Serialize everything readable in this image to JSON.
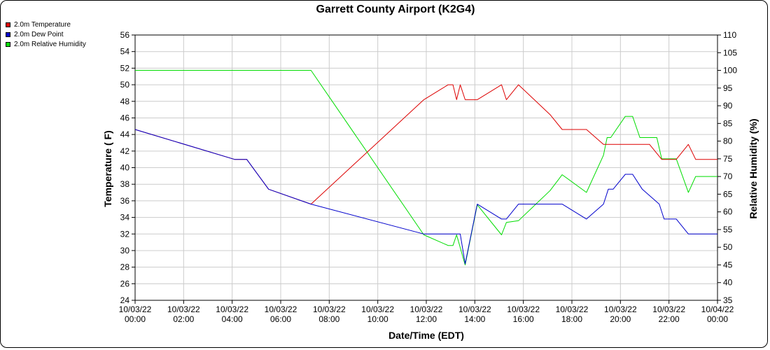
{
  "chart_data": {
    "type": "line",
    "title": "Garrett County Airport (K2G4)",
    "xlabel": "Date/Time (EDT)",
    "ylabel_left": "Temperature ( F)",
    "ylabel_right": "Relative Humidity (%)",
    "x_range_hours": [
      0,
      24
    ],
    "x_ticks": [
      {
        "h": 0,
        "date": "10/03/22",
        "time": "00:00"
      },
      {
        "h": 2,
        "date": "10/03/22",
        "time": "02:00"
      },
      {
        "h": 4,
        "date": "10/03/22",
        "time": "04:00"
      },
      {
        "h": 6,
        "date": "10/03/22",
        "time": "06:00"
      },
      {
        "h": 8,
        "date": "10/03/22",
        "time": "08:00"
      },
      {
        "h": 10,
        "date": "10/03/22",
        "time": "10:00"
      },
      {
        "h": 12,
        "date": "10/03/22",
        "time": "12:00"
      },
      {
        "h": 14,
        "date": "10/03/22",
        "time": "14:00"
      },
      {
        "h": 16,
        "date": "10/03/22",
        "time": "16:00"
      },
      {
        "h": 18,
        "date": "10/03/22",
        "time": "18:00"
      },
      {
        "h": 20,
        "date": "10/03/22",
        "time": "20:00"
      },
      {
        "h": 22,
        "date": "10/03/22",
        "time": "22:00"
      },
      {
        "h": 24,
        "date": "10/04/22",
        "time": "00:00"
      }
    ],
    "ylim_left": [
      24,
      56
    ],
    "yticks_left": [
      24,
      26,
      28,
      30,
      32,
      34,
      36,
      38,
      40,
      42,
      44,
      46,
      48,
      50,
      52,
      54,
      56
    ],
    "ylim_right": [
      35,
      110
    ],
    "yticks_right": [
      35,
      40,
      45,
      50,
      55,
      60,
      65,
      70,
      75,
      80,
      85,
      90,
      95,
      100,
      105,
      110
    ],
    "grid": true,
    "legend_position": "top-left",
    "series": [
      {
        "name": "2.0m Temperature",
        "color": "#dd0000",
        "axis": "left",
        "points": [
          [
            0,
            44.6
          ],
          [
            4.1,
            41.0
          ],
          [
            4.6,
            41.0
          ],
          [
            5.5,
            37.4
          ],
          [
            7.25,
            35.6
          ],
          [
            11.9,
            48.2
          ],
          [
            12.9,
            50.0
          ],
          [
            13.1,
            50.0
          ],
          [
            13.25,
            48.2
          ],
          [
            13.4,
            50.0
          ],
          [
            13.6,
            48.2
          ],
          [
            14.1,
            48.2
          ],
          [
            15.1,
            50.0
          ],
          [
            15.3,
            48.2
          ],
          [
            15.8,
            50.0
          ],
          [
            17.1,
            46.4
          ],
          [
            17.6,
            44.6
          ],
          [
            18.6,
            44.6
          ],
          [
            19.3,
            42.8
          ],
          [
            20.2,
            42.8
          ],
          [
            21.2,
            42.8
          ],
          [
            21.7,
            41.0
          ],
          [
            22.3,
            41.0
          ],
          [
            22.8,
            42.8
          ],
          [
            23.1,
            41.0
          ],
          [
            24.0,
            41.0
          ]
        ]
      },
      {
        "name": "2.0m Dew Point",
        "color": "#0000cc",
        "axis": "left",
        "points": [
          [
            0,
            44.6
          ],
          [
            4.1,
            41.0
          ],
          [
            4.6,
            41.0
          ],
          [
            5.5,
            37.4
          ],
          [
            7.25,
            35.6
          ],
          [
            11.9,
            32.0
          ],
          [
            13.1,
            32.0
          ],
          [
            13.4,
            32.0
          ],
          [
            13.6,
            28.4
          ],
          [
            14.1,
            35.6
          ],
          [
            15.1,
            33.8
          ],
          [
            15.3,
            33.8
          ],
          [
            15.8,
            35.6
          ],
          [
            17.1,
            35.6
          ],
          [
            17.6,
            35.6
          ],
          [
            18.6,
            33.8
          ],
          [
            19.3,
            35.6
          ],
          [
            19.5,
            37.4
          ],
          [
            19.7,
            37.4
          ],
          [
            20.2,
            39.2
          ],
          [
            20.5,
            39.2
          ],
          [
            20.9,
            37.4
          ],
          [
            21.6,
            35.6
          ],
          [
            21.8,
            33.8
          ],
          [
            22.3,
            33.8
          ],
          [
            22.8,
            32.0
          ],
          [
            24.0,
            32.0
          ]
        ]
      },
      {
        "name": "2.0m Relative Humidity",
        "color": "#00dd00",
        "axis": "right",
        "points": [
          [
            0,
            100
          ],
          [
            7.25,
            100
          ],
          [
            11.9,
            53.5
          ],
          [
            12.9,
            50.5
          ],
          [
            13.1,
            50.5
          ],
          [
            13.25,
            53.5
          ],
          [
            13.6,
            45.0
          ],
          [
            14.1,
            62.0
          ],
          [
            15.1,
            53.5
          ],
          [
            15.3,
            57.0
          ],
          [
            15.8,
            57.5
          ],
          [
            17.1,
            66.0
          ],
          [
            17.6,
            70.5
          ],
          [
            18.6,
            65.5
          ],
          [
            19.3,
            76.0
          ],
          [
            19.45,
            81.0
          ],
          [
            19.6,
            81.0
          ],
          [
            20.2,
            87.0
          ],
          [
            20.5,
            87.0
          ],
          [
            20.8,
            81.0
          ],
          [
            21.5,
            81.0
          ],
          [
            21.7,
            75.0
          ],
          [
            22.3,
            75.0
          ],
          [
            22.8,
            65.5
          ],
          [
            23.1,
            70.0
          ],
          [
            24.0,
            70.0
          ]
        ]
      }
    ]
  }
}
